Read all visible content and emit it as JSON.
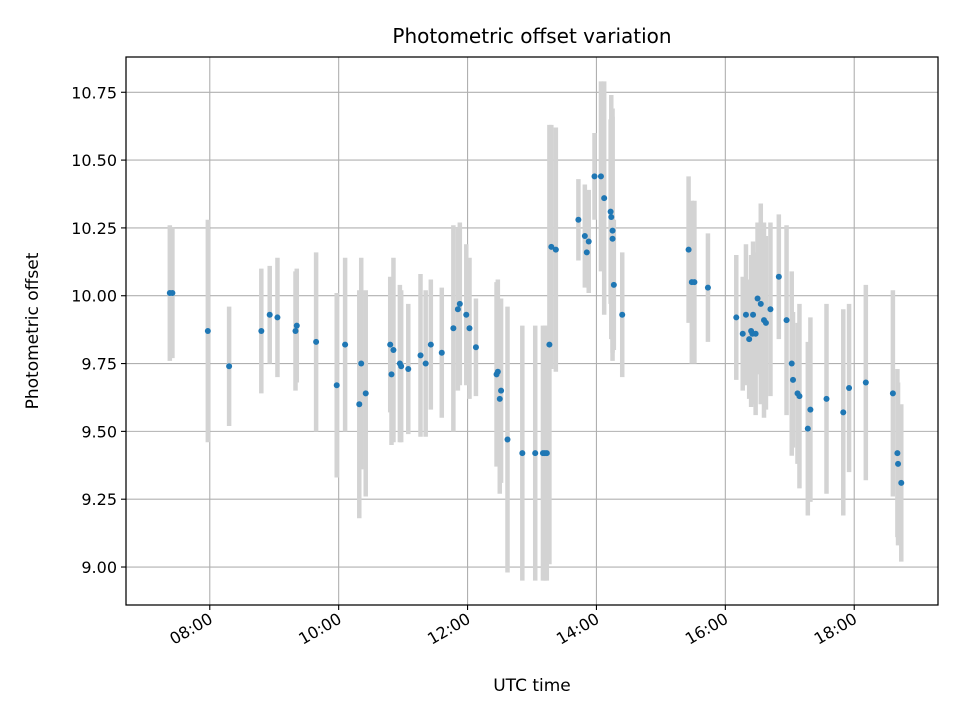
{
  "chart_data": {
    "type": "scatter",
    "title": "Photometric offset variation",
    "xlabel": "UTC time",
    "ylabel": "Photometric offset",
    "x_unit": "hours UTC",
    "xlim": [
      6.7,
      19.3
    ],
    "ylim": [
      8.86,
      10.88
    ],
    "x_ticks": [
      8,
      10,
      12,
      14,
      16,
      18
    ],
    "x_tick_labels": [
      "08:00",
      "10:00",
      "12:00",
      "14:00",
      "16:00",
      "18:00"
    ],
    "y_ticks": [
      9.0,
      9.25,
      9.5,
      9.75,
      10.0,
      10.25,
      10.5,
      10.75
    ],
    "y_tick_labels": [
      "9.00",
      "9.25",
      "9.50",
      "9.75",
      "10.00",
      "10.25",
      "10.50",
      "10.75"
    ],
    "grid": true,
    "marker_color": "#1f77b4",
    "errorbar_color": "#d3d3d3",
    "series": [
      {
        "x": [
          7.38,
          7.42,
          7.97,
          8.3,
          8.8,
          8.93,
          9.05,
          9.33,
          9.35,
          9.65,
          9.97,
          10.1,
          10.32,
          10.35,
          10.42,
          10.8,
          10.82,
          10.85,
          10.95,
          10.97,
          11.08,
          11.27,
          11.35,
          11.43,
          11.6,
          11.78,
          11.85,
          11.88,
          11.98,
          12.03,
          12.13,
          12.45,
          12.47,
          12.5,
          12.52,
          12.62,
          12.85,
          13.05,
          13.17,
          13.2,
          13.23,
          13.27,
          13.3,
          13.37,
          13.72,
          13.82,
          13.85,
          13.88,
          13.97,
          14.07,
          14.12,
          14.22,
          14.23,
          14.25,
          14.25,
          14.27,
          14.4,
          15.43,
          15.48,
          15.52,
          15.73,
          16.17,
          16.27,
          16.32,
          16.37,
          16.4,
          16.42,
          16.43,
          16.47,
          16.5,
          16.55,
          16.6,
          16.63,
          16.7,
          16.83,
          16.95,
          17.03,
          17.05,
          17.12,
          17.15,
          17.28,
          17.32,
          17.57,
          17.83,
          17.92,
          18.18,
          18.6,
          18.67,
          18.68,
          18.73
        ],
        "y": [
          10.01,
          10.01,
          9.87,
          9.74,
          9.87,
          9.93,
          9.92,
          9.87,
          9.89,
          9.83,
          9.67,
          9.82,
          9.6,
          9.75,
          9.64,
          9.82,
          9.71,
          9.8,
          9.75,
          9.74,
          9.73,
          9.78,
          9.75,
          9.82,
          9.79,
          9.88,
          9.95,
          9.97,
          9.93,
          9.88,
          9.81,
          9.71,
          9.72,
          9.62,
          9.65,
          9.47,
          9.42,
          9.42,
          9.42,
          9.42,
          9.42,
          9.82,
          10.18,
          10.17,
          10.28,
          10.22,
          10.16,
          10.2,
          10.44,
          10.44,
          10.36,
          10.31,
          10.29,
          10.24,
          10.21,
          10.04,
          9.93,
          10.17,
          10.05,
          10.05,
          10.03,
          9.92,
          9.86,
          9.93,
          9.84,
          9.87,
          9.86,
          9.93,
          9.86,
          9.99,
          9.97,
          9.91,
          9.9,
          9.95,
          10.07,
          9.91,
          9.75,
          9.69,
          9.64,
          9.63,
          9.51,
          9.58,
          9.62,
          9.57,
          9.66,
          9.68,
          9.64,
          9.42,
          9.38,
          9.31
        ],
        "yerr": [
          0.25,
          0.24,
          0.41,
          0.22,
          0.23,
          0.18,
          0.22,
          0.22,
          0.21,
          0.33,
          0.34,
          0.32,
          0.42,
          0.39,
          0.38,
          0.25,
          0.26,
          0.34,
          0.29,
          0.28,
          0.24,
          0.3,
          0.27,
          0.24,
          0.24,
          0.38,
          0.3,
          0.3,
          0.26,
          0.26,
          0.18,
          0.34,
          0.34,
          0.35,
          0.34,
          0.49,
          0.47,
          0.47,
          0.47,
          0.47,
          0.47,
          0.81,
          0.45,
          0.45,
          0.15,
          0.19,
          0.1,
          0.19,
          0.16,
          0.35,
          0.43,
          0.34,
          0.45,
          0.45,
          0.45,
          0.24,
          0.23,
          0.27,
          0.3,
          0.3,
          0.2,
          0.23,
          0.21,
          0.26,
          0.22,
          0.28,
          0.26,
          0.27,
          0.3,
          0.28,
          0.37,
          0.36,
          0.32,
          0.32,
          0.23,
          0.35,
          0.34,
          0.25,
          0.26,
          0.34,
          0.32,
          0.34,
          0.35,
          0.38,
          0.31,
          0.36,
          0.38,
          0.31,
          0.3,
          0.29
        ]
      }
    ]
  }
}
